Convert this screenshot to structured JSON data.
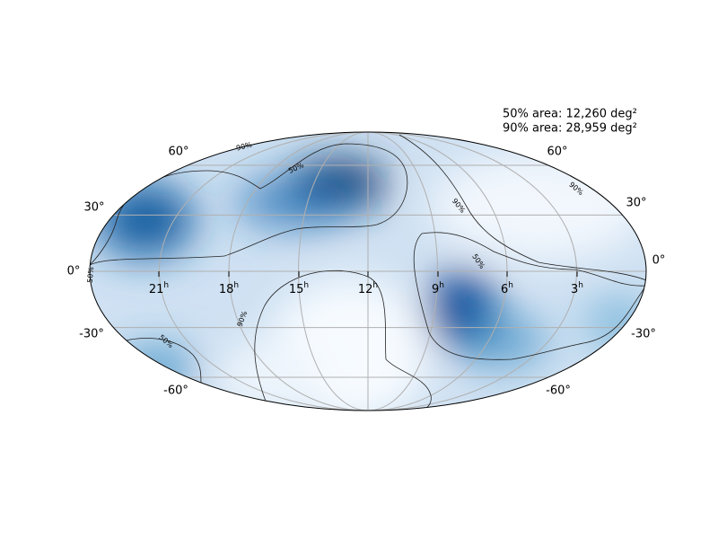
{
  "annotations": [
    "50% area: 12,260 deg²",
    "90% area: 28,959 deg²"
  ],
  "lat_labels_left": [
    "60°",
    "30°",
    "0°",
    "-30°",
    "-60°"
  ],
  "lat_labels_right": [
    "60°",
    "30°",
    "0°",
    "-30°",
    "-60°"
  ],
  "ra_labels": [
    {
      "hour": "21",
      "unit": "h"
    },
    {
      "hour": "18",
      "unit": "h"
    },
    {
      "hour": "15",
      "unit": "h"
    },
    {
      "hour": "12",
      "unit": "h"
    },
    {
      "hour": "9",
      "unit": "h"
    },
    {
      "hour": "6",
      "unit": "h"
    },
    {
      "hour": "3",
      "unit": "h"
    }
  ],
  "contour_labels": [
    "90%",
    "50%",
    "90%",
    "50%",
    "90%",
    "50%",
    "90%",
    "50%"
  ]
}
